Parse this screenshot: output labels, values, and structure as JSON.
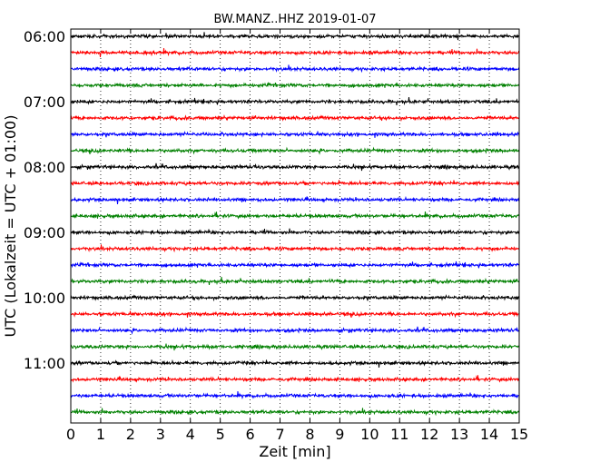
{
  "chart_data": {
    "type": "line",
    "title": "BW.MANZ..HHZ 2019-01-07",
    "xlabel": "Zeit  [min]",
    "ylabel": "UTC (Lokalzeit = UTC + 01:00)",
    "xlim": [
      0,
      15
    ],
    "x_ticks": [
      0,
      1,
      2,
      3,
      4,
      5,
      6,
      7,
      8,
      9,
      10,
      11,
      12,
      13,
      14,
      15
    ],
    "y_tick_labels": [
      "06:00",
      "07:00",
      "08:00",
      "09:00",
      "10:00",
      "11:00"
    ],
    "trace_start_times": [
      "06:00",
      "06:15",
      "06:30",
      "06:45",
      "07:00",
      "07:15",
      "07:30",
      "07:45",
      "08:00",
      "08:15",
      "08:30",
      "08:45",
      "09:00",
      "09:15",
      "09:30",
      "09:45",
      "10:00",
      "10:15",
      "10:30",
      "10:45",
      "11:00",
      "11:15",
      "11:30",
      "11:45"
    ],
    "trace_colors": [
      "#000000",
      "#ff0000",
      "#0000ff",
      "#008000"
    ],
    "x_grid": "dotted",
    "y_grid": false,
    "legend": "none"
  }
}
